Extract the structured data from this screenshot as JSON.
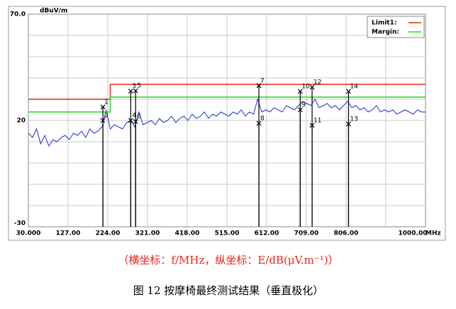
{
  "chart_data": {
    "type": "line",
    "y_unit": "dBuV/m",
    "x_unit": "MHz",
    "xlim": [
      30,
      1000
    ],
    "ylim": [
      -30,
      70
    ],
    "xticks": [
      {
        "value": 30,
        "label": "30.000"
      },
      {
        "value": 127,
        "label": "127.00"
      },
      {
        "value": 224,
        "label": "224.00"
      },
      {
        "value": 321,
        "label": "321.00"
      },
      {
        "value": 418,
        "label": "418.00"
      },
      {
        "value": 515,
        "label": "515.00"
      },
      {
        "value": 612,
        "label": "612.00"
      },
      {
        "value": 709,
        "label": "709.00"
      },
      {
        "value": 806,
        "label": "806.00"
      },
      {
        "value": 1000,
        "label": "1000.00"
      }
    ],
    "xgrid": [
      127,
      224,
      321,
      418,
      515,
      612,
      709,
      806,
      903
    ],
    "yticks": [
      {
        "value": 70,
        "label": "70.0"
      },
      20,
      -30
    ],
    "ygrid": [
      60,
      50,
      40,
      30,
      20,
      10,
      0,
      -10,
      -20
    ],
    "grid": true,
    "legend": "top-right",
    "series": [
      {
        "name": "Limit1:",
        "color": "#e8261c",
        "x": [
          30,
          230,
          230,
          1000
        ],
        "values": [
          30,
          30,
          37,
          37
        ]
      },
      {
        "name": "Margin:",
        "color": "#22d81e",
        "x": [
          30,
          230,
          230,
          1000
        ],
        "values": [
          24,
          24,
          31,
          31
        ]
      }
    ],
    "trace": {
      "color": "#1c2fd0",
      "x": [
        30,
        40,
        50,
        60,
        70,
        80,
        90,
        100,
        110,
        120,
        130,
        140,
        150,
        160,
        170,
        180,
        190,
        200,
        210,
        220,
        230,
        240,
        250,
        260,
        270,
        280,
        290,
        300,
        310,
        320,
        330,
        340,
        350,
        360,
        370,
        380,
        390,
        400,
        410,
        420,
        430,
        440,
        450,
        460,
        470,
        480,
        490,
        500,
        510,
        520,
        530,
        540,
        550,
        560,
        570,
        580,
        590,
        600,
        610,
        620,
        630,
        640,
        650,
        660,
        670,
        680,
        690,
        700,
        710,
        720,
        730,
        740,
        750,
        760,
        770,
        780,
        790,
        800,
        810,
        820,
        830,
        840,
        850,
        860,
        870,
        880,
        890,
        900,
        910,
        920,
        930,
        940,
        950,
        960,
        970,
        980,
        990,
        1000
      ],
      "values": [
        14,
        12,
        16,
        9,
        13,
        8,
        11,
        10,
        12,
        13,
        11,
        14,
        13,
        15,
        12,
        16,
        14,
        15,
        17,
        25,
        16,
        18,
        17,
        16,
        19,
        20,
        17,
        24,
        18,
        19,
        20,
        18,
        21,
        19,
        20,
        22,
        19,
        21,
        22,
        20,
        23,
        21,
        22,
        24,
        21,
        23,
        22,
        24,
        23,
        22,
        24,
        23,
        25,
        22,
        24,
        23,
        30,
        24,
        25,
        24,
        26,
        25,
        24,
        27,
        26,
        25,
        27,
        29,
        28,
        27,
        30,
        26,
        27,
        28,
        26,
        27,
        25,
        27,
        29,
        26,
        27,
        25,
        26,
        24,
        25,
        27,
        24,
        25,
        24,
        25,
        23,
        24,
        25,
        24,
        23,
        25,
        24,
        24
      ]
    },
    "markers": [
      {
        "label": "1",
        "x": 212,
        "value": 26.4
      },
      {
        "label": "2",
        "x": 212,
        "value": 20
      },
      {
        "label": "3",
        "x": 280,
        "value": 33.8
      },
      {
        "label": "4",
        "x": 280,
        "value": 20
      },
      {
        "label": "5",
        "x": 292,
        "value": 34
      },
      {
        "label": "6",
        "x": 292,
        "value": 19.5
      },
      {
        "label": "7",
        "x": 593,
        "value": 36.4
      },
      {
        "label": "8",
        "x": 593,
        "value": 18.7
      },
      {
        "label": "9",
        "x": 694,
        "value": 25
      },
      {
        "label": "10",
        "x": 694,
        "value": 33.7
      },
      {
        "label": "11",
        "x": 723,
        "value": 17.7
      },
      {
        "label": "12",
        "x": 723,
        "value": 35.7
      },
      {
        "label": "13",
        "x": 812,
        "value": 18.3
      },
      {
        "label": "14",
        "x": 812,
        "value": 33.7
      }
    ]
  },
  "caption_axes": "（横坐标：f/MHz，纵坐标：E/dB(μV.m⁻¹)）",
  "figure_caption": "图 12 按摩椅最终测试结果（垂直极化）"
}
